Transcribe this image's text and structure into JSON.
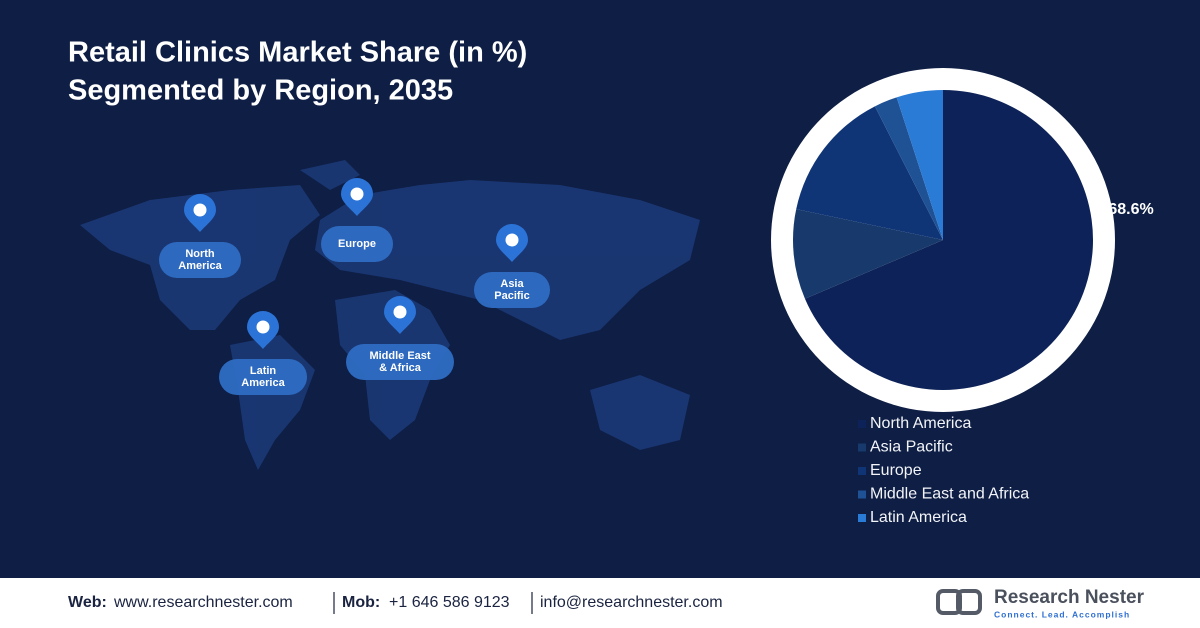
{
  "chart_data": {
    "type": "pie",
    "title": [
      "Retail Clinics Market Share (in %)",
      "Segmented by Region, 2035"
    ],
    "categories": [
      "North America",
      "Asia Pacific",
      "Europe",
      "Middle East and Africa",
      "Latin America"
    ],
    "values": [
      68.6,
      9.7,
      14.2,
      2.5,
      5.0
    ],
    "value_labels": [
      "68.6%",
      null,
      null,
      null,
      null
    ],
    "colors": [
      "#0c2258",
      "#17396b",
      "#103577",
      "#1f5195",
      "#2a7bd6"
    ]
  },
  "map_labels": [
    {
      "lines": [
        "North",
        "America"
      ]
    },
    {
      "lines": [
        "Europe"
      ]
    },
    {
      "lines": [
        "Asia",
        "Pacific"
      ]
    },
    {
      "lines": [
        "Middle East",
        "& Africa"
      ]
    },
    {
      "lines": [
        "Latin",
        "America"
      ]
    }
  ],
  "footer": {
    "web_label": "Web:",
    "web": "www.researchnester.com",
    "mob_label": "Mob:",
    "mob": "+1 646 586 9123",
    "email": "info@researchnester.com",
    "brand": "Research Nester",
    "tagline": "Connect. Lead. Accomplish"
  }
}
